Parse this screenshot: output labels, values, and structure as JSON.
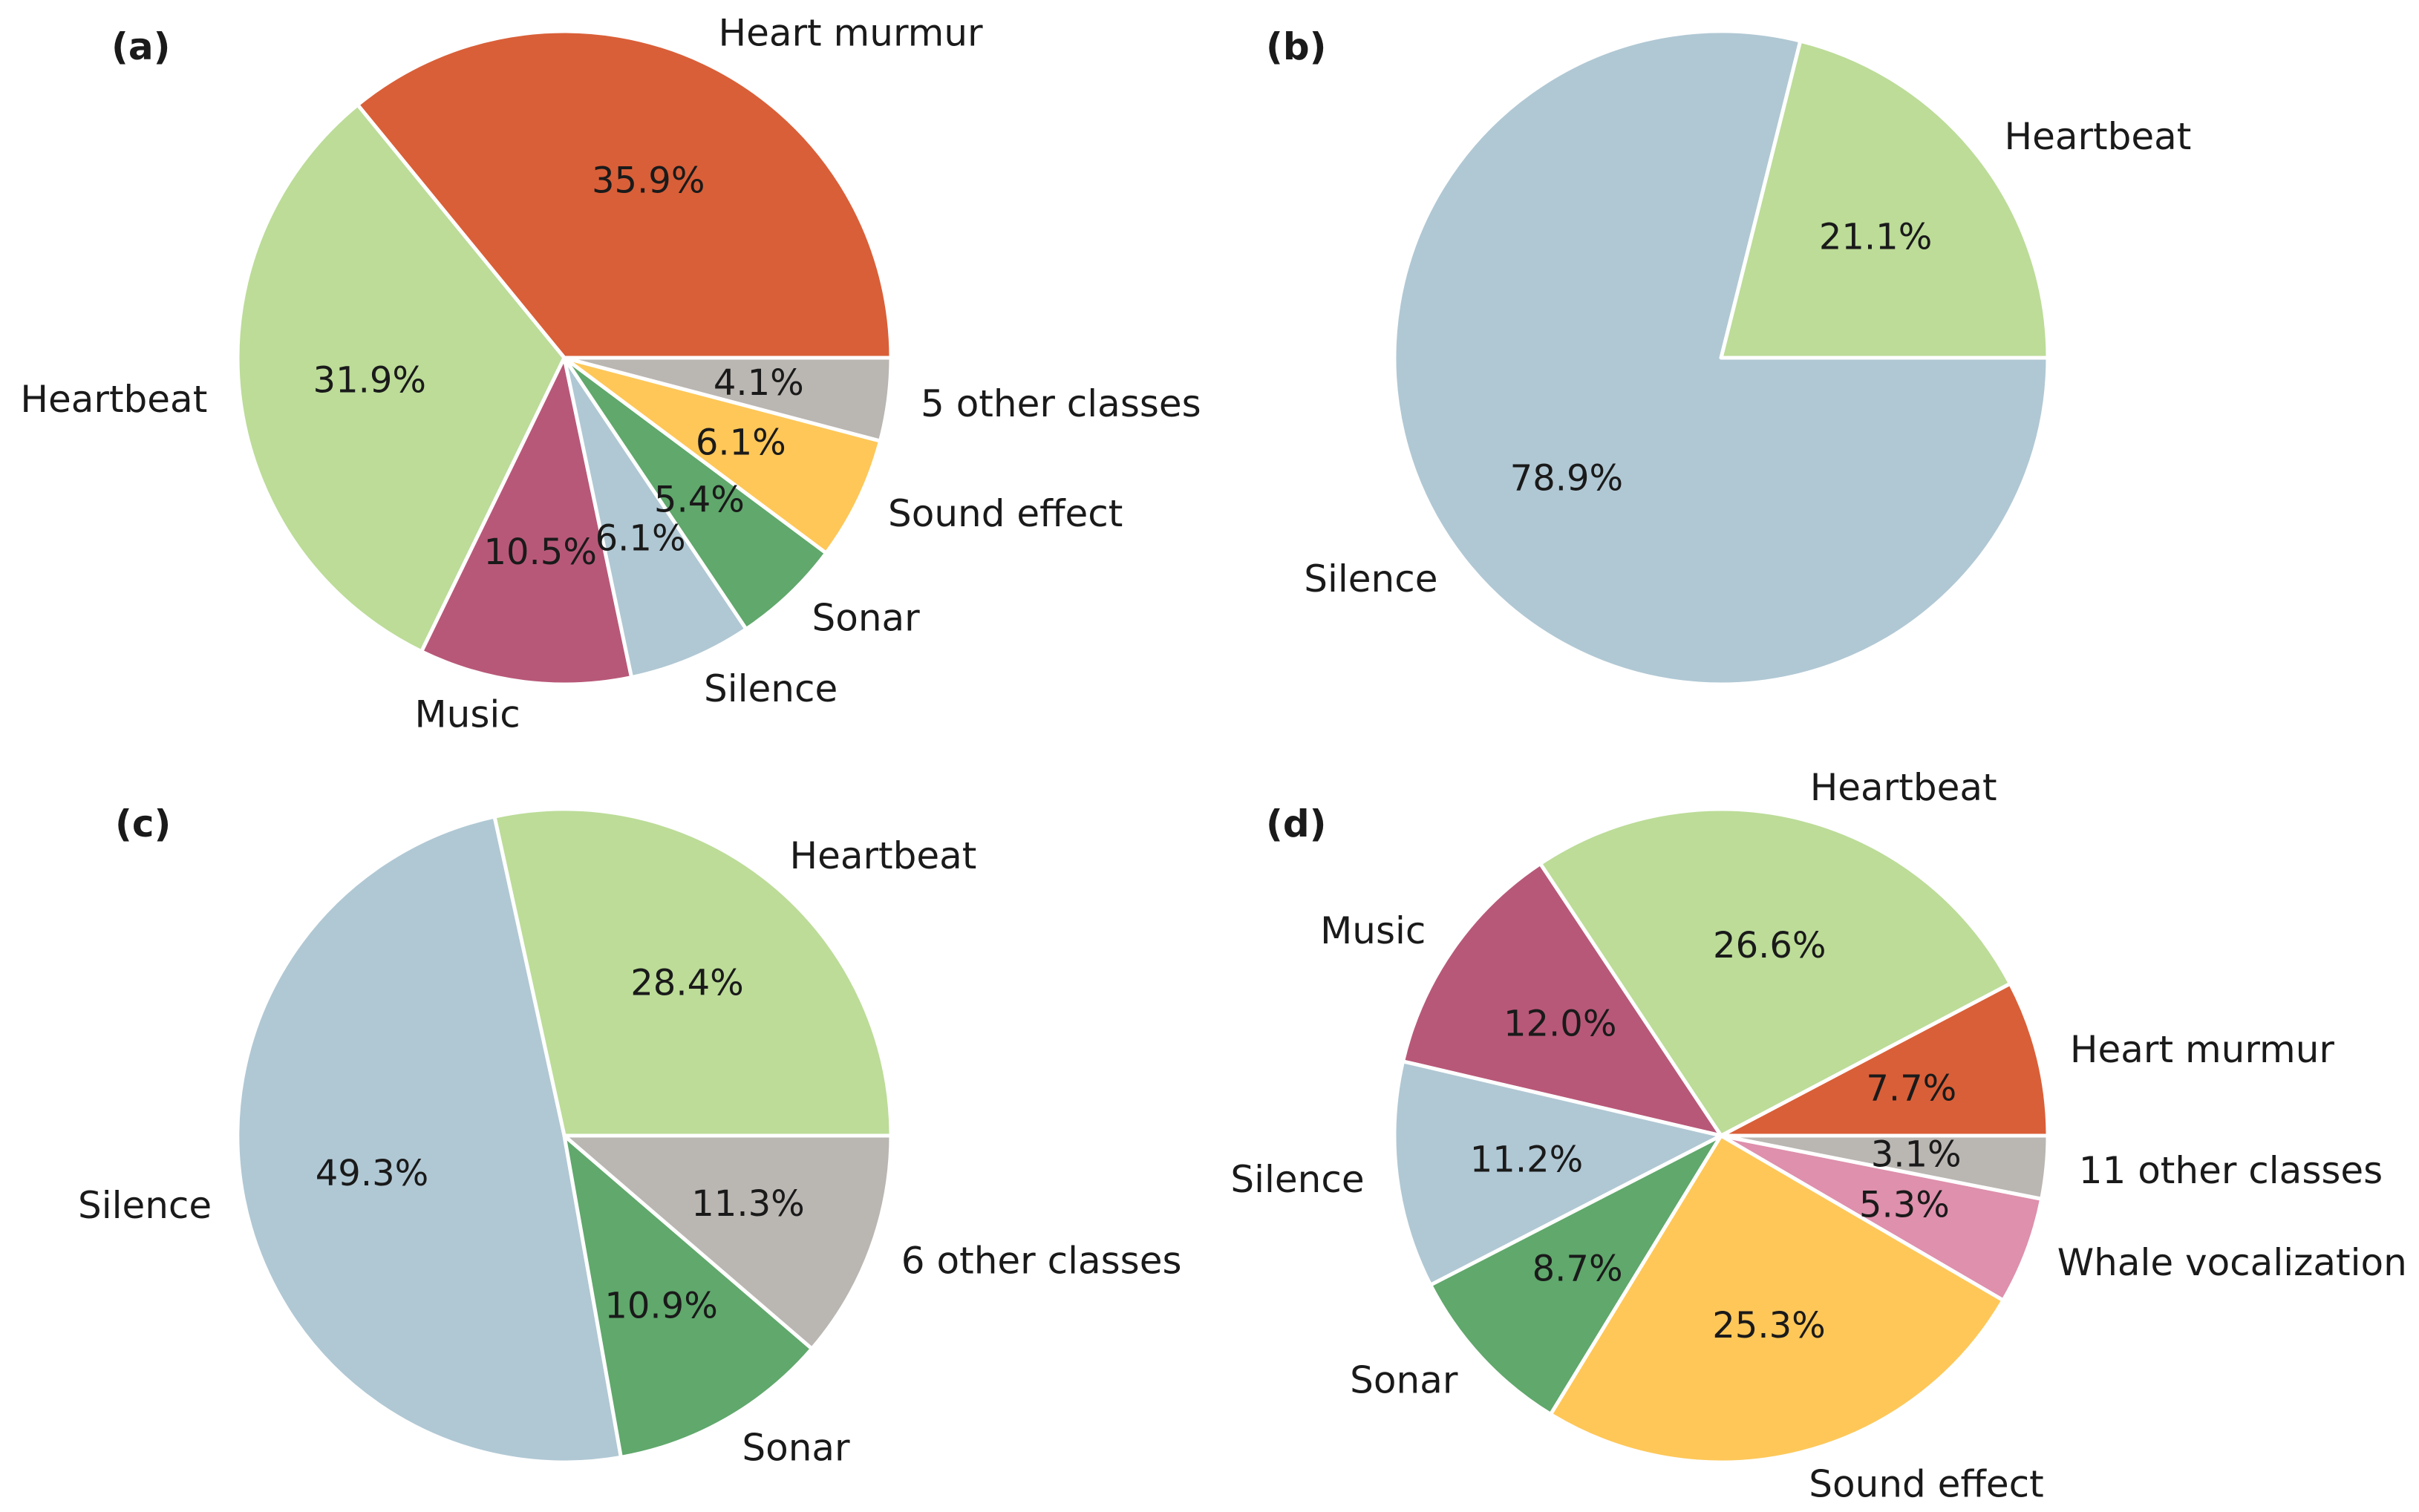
{
  "chart_data": [
    {
      "type": "pie",
      "panel": "(a)",
      "slices": [
        {
          "label": "Heart murmur",
          "value": 35.9,
          "pct": "35.9%",
          "color": "#d95f38"
        },
        {
          "label": "Heartbeat",
          "value": 31.9,
          "pct": "31.9%",
          "color": "#bcdc98"
        },
        {
          "label": "Music",
          "value": 10.5,
          "pct": "10.5%",
          "color": "#b85878"
        },
        {
          "label": "Silence",
          "value": 6.1,
          "pct": "6.1%",
          "color": "#b0c8d4"
        },
        {
          "label": "Sonar",
          "value": 5.4,
          "pct": "5.4%",
          "color": "#60a86c"
        },
        {
          "label": "Sound effect",
          "value": 6.1,
          "pct": "6.1%",
          "color": "#fec758"
        },
        {
          "label": "5 other classes",
          "value": 4.1,
          "pct": "4.1%",
          "color": "#bab6b2"
        }
      ]
    },
    {
      "type": "pie",
      "panel": "(b)",
      "slices": [
        {
          "label": "Heartbeat",
          "value": 21.1,
          "pct": "21.1%",
          "color": "#bcdc98"
        },
        {
          "label": "Silence",
          "value": 78.9,
          "pct": "78.9%",
          "color": "#b0c8d4"
        }
      ]
    },
    {
      "type": "pie",
      "panel": "(c)",
      "slices": [
        {
          "label": "Heartbeat",
          "value": 28.4,
          "pct": "28.4%",
          "color": "#bcdc98"
        },
        {
          "label": "Silence",
          "value": 49.3,
          "pct": "49.3%",
          "color": "#b0c8d4"
        },
        {
          "label": "Sonar",
          "value": 10.9,
          "pct": "10.9%",
          "color": "#60a86c"
        },
        {
          "label": "6 other classes",
          "value": 11.3,
          "pct": "11.3%",
          "color": "#bab6b2"
        }
      ]
    },
    {
      "type": "pie",
      "panel": "(d)",
      "slices": [
        {
          "label": "Heart murmur",
          "value": 7.7,
          "pct": "7.7%",
          "color": "#d95f38"
        },
        {
          "label": "Heartbeat",
          "value": 26.6,
          "pct": "26.6%",
          "color": "#bcdc98"
        },
        {
          "label": "Music",
          "value": 12.0,
          "pct": "12.0%",
          "color": "#b85878"
        },
        {
          "label": "Silence",
          "value": 11.2,
          "pct": "11.2%",
          "color": "#b0c8d4"
        },
        {
          "label": "Sonar",
          "value": 8.7,
          "pct": "8.7%",
          "color": "#60a86c"
        },
        {
          "label": "Sound effect",
          "value": 25.3,
          "pct": "25.3%",
          "color": "#fec758"
        },
        {
          "label": "Whale vocalization",
          "value": 5.3,
          "pct": "5.3%",
          "color": "#de90ac"
        },
        {
          "label": "11 other classes",
          "value": 3.1,
          "pct": "3.1%",
          "color": "#bab6b2"
        }
      ]
    }
  ]
}
